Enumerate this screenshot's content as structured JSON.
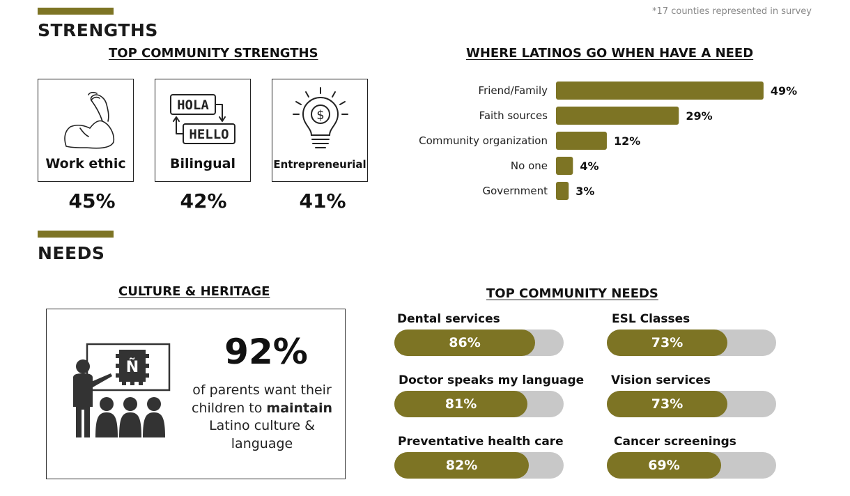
{
  "note": "*17 counties represented in survey",
  "strengths": {
    "title": "STRENGTHS",
    "subtitle": "TOP COMMUNITY STRENGTHS",
    "cards": [
      {
        "label": "Work ethic",
        "value": "45%",
        "icon": "flexed-arm-icon"
      },
      {
        "label": "Bilingual",
        "value": "42%",
        "icon": "hola-hello-icon",
        "icon_text": [
          "HOLA",
          "HELLO"
        ]
      },
      {
        "label": "Entrepreneurial",
        "value": "41%",
        "icon": "lightbulb-dollar-icon",
        "icon_text": "$"
      }
    ]
  },
  "needs": {
    "title": "NEEDS",
    "culture": {
      "subtitle": "CULTURE & HERITAGE",
      "value": "92%",
      "text_pre": "of parents want their children to ",
      "text_bold": "maintain",
      "text_post": " Latino culture & language",
      "icon": "teacher-board-icon",
      "icon_text": "Ñ"
    },
    "top_needs": {
      "subtitle": "TOP COMMUNITY NEEDS",
      "items": [
        {
          "label": "Dental services",
          "value": 86,
          "display": "86%"
        },
        {
          "label": "ESL Classes",
          "value": 73,
          "display": "73%"
        },
        {
          "label": "Doctor speaks my language",
          "value": 81,
          "display": "81%"
        },
        {
          "label": "Vision services",
          "value": 73,
          "display": "73%"
        },
        {
          "label": "Preventative health care",
          "value": 82,
          "display": "82%"
        },
        {
          "label": "Cancer screenings",
          "value": 69,
          "display": "69%"
        }
      ]
    }
  },
  "colors": {
    "accent": "#7d7424",
    "track": "#c8c8c8"
  },
  "chart_data": {
    "type": "bar",
    "orientation": "horizontal",
    "title": "WHERE LATINOS GO WHEN HAVE A NEED",
    "categories": [
      "Friend/Family",
      "Faith sources",
      "Community organization",
      "No one",
      "Government"
    ],
    "values": [
      49,
      29,
      12,
      4,
      3
    ],
    "value_labels": [
      "49%",
      "29%",
      "12%",
      "4%",
      "3%"
    ],
    "xlim": [
      0,
      50
    ],
    "grid": false,
    "legend": "none"
  }
}
